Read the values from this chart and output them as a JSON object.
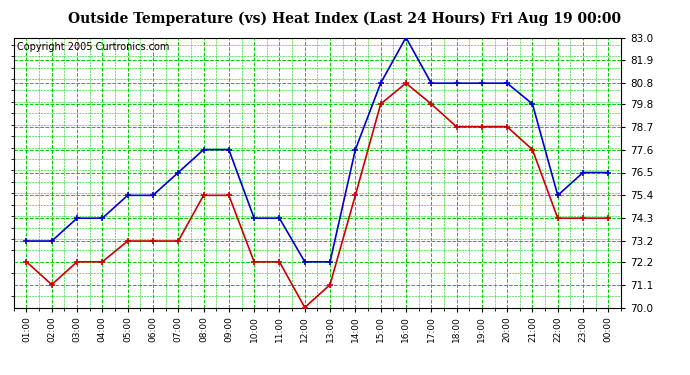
{
  "title": "Outside Temperature (vs) Heat Index (Last 24 Hours) Fri Aug 19 00:00",
  "copyright": "Copyright 2005 Curtronics.com",
  "x_labels": [
    "01:00",
    "02:00",
    "03:00",
    "04:00",
    "05:00",
    "06:00",
    "07:00",
    "08:00",
    "09:00",
    "10:00",
    "11:00",
    "12:00",
    "13:00",
    "14:00",
    "15:00",
    "16:00",
    "17:00",
    "18:00",
    "19:00",
    "20:00",
    "21:00",
    "22:00",
    "23:00",
    "00:00"
  ],
  "blue_values": [
    73.2,
    73.2,
    74.3,
    74.3,
    75.4,
    75.4,
    76.5,
    77.6,
    77.6,
    74.3,
    74.3,
    72.2,
    72.2,
    77.6,
    80.8,
    83.0,
    80.8,
    80.8,
    80.8,
    80.8,
    79.8,
    75.4,
    76.5,
    76.5
  ],
  "red_values": [
    72.2,
    71.1,
    72.2,
    72.2,
    73.2,
    73.2,
    73.2,
    75.4,
    75.4,
    72.2,
    72.2,
    70.0,
    71.1,
    75.4,
    79.8,
    80.8,
    79.8,
    78.7,
    78.7,
    78.7,
    77.6,
    74.3,
    74.3,
    74.3
  ],
  "ylim": [
    70.0,
    83.0
  ],
  "yticks": [
    70.0,
    71.1,
    72.2,
    73.2,
    74.3,
    75.4,
    76.5,
    77.6,
    78.7,
    79.8,
    80.8,
    81.9,
    83.0
  ],
  "blue_color": "#0000cc",
  "red_color": "#cc0000",
  "bg_color": "#ffffff",
  "plot_bg_color": "#ffffff",
  "grid_color": "#00cc00",
  "title_fontsize": 10,
  "copyright_fontsize": 7
}
